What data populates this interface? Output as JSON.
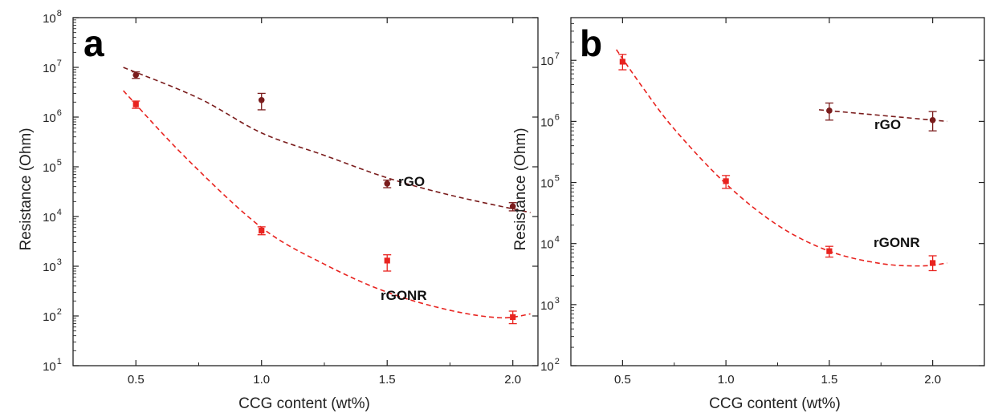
{
  "chart_data": [
    {
      "type": "scatter",
      "panel_label": "a",
      "xlabel": "CCG content (wt%)",
      "ylabel": "Resistance (Ohm)",
      "xlim": [
        0.25,
        2.1
      ],
      "ylim": [
        10,
        100000000
      ],
      "yscale": "log",
      "xticks": [
        "0.5",
        "1.0",
        "1.5",
        "2.0"
      ],
      "xtick_values": [
        0.5,
        1.0,
        1.5,
        2.0
      ],
      "yticks": [
        1,
        2,
        3,
        4,
        5,
        6,
        7,
        8
      ],
      "grid": false,
      "series": [
        {
          "name": "rGO",
          "color": "#7a1c1c",
          "marker": "circle",
          "x": [
            0.5,
            1.0,
            1.5,
            2.0
          ],
          "y": [
            7000000,
            2200000,
            46000,
            16000
          ],
          "err_low": [
            6000000,
            1400000,
            38000,
            13000
          ],
          "err_high": [
            8100000,
            3000000,
            54000,
            19000
          ],
          "fit": [
            [
              0.45,
              10000000
            ],
            [
              0.75,
              2400000
            ],
            [
              1.0,
              480000
            ],
            [
              1.25,
              170000
            ],
            [
              1.5,
              60000
            ],
            [
              1.75,
              27000
            ],
            [
              2.07,
              12000
            ]
          ]
        },
        {
          "name": "rGONR",
          "color": "#e8231f",
          "marker": "square",
          "x": [
            0.5,
            1.0,
            1.5,
            2.0
          ],
          "y": [
            1800000,
            5200,
            1300,
            95
          ],
          "err_low": [
            1500000,
            4300,
            800,
            70
          ],
          "err_high": [
            2100000,
            6200,
            1700,
            125
          ],
          "fit": [
            [
              0.45,
              3400000
            ],
            [
              0.7,
              150000
            ],
            [
              1.0,
              6000
            ],
            [
              1.25,
              1100
            ],
            [
              1.5,
              300
            ],
            [
              1.75,
              130
            ],
            [
              1.95,
              92
            ],
            [
              2.07,
              110
            ]
          ]
        }
      ]
    },
    {
      "type": "scatter",
      "panel_label": "b",
      "xlabel": "CCG content (wt%)",
      "ylabel": "Resistance (Ohm)",
      "xlim": [
        0.25,
        2.25
      ],
      "ylim": [
        100,
        50000000
      ],
      "yscale": "log",
      "xticks": [
        "0.5",
        "1.0",
        "1.5",
        "2.0"
      ],
      "xtick_values": [
        0.5,
        1.0,
        1.5,
        2.0
      ],
      "yticks": [
        2,
        3,
        4,
        5,
        6,
        7
      ],
      "grid": false,
      "series": [
        {
          "name": "rGO",
          "color": "#7a1c1c",
          "marker": "circle",
          "x": [
            1.5,
            2.0
          ],
          "y": [
            1500000,
            1050000
          ],
          "err_low": [
            1050000,
            700000
          ],
          "err_high": [
            2000000,
            1450000
          ],
          "fit": [
            [
              1.45,
              1550000
            ],
            [
              2.07,
              1000000
            ]
          ]
        },
        {
          "name": "rGONR",
          "color": "#e8231f",
          "marker": "square",
          "x": [
            0.5,
            1.0,
            1.5,
            2.0
          ],
          "y": [
            9500000,
            105000,
            7500,
            4800
          ],
          "err_low": [
            7000000,
            80000,
            6000,
            3600
          ],
          "err_high": [
            12500000,
            130000,
            9000,
            6300
          ],
          "fit": [
            [
              0.47,
              15000000
            ],
            [
              0.6,
              3500000
            ],
            [
              0.75,
              750000
            ],
            [
              1.0,
              95000
            ],
            [
              1.25,
              20000
            ],
            [
              1.5,
              7500
            ],
            [
              1.75,
              4700
            ],
            [
              1.95,
              4300
            ],
            [
              2.07,
              4800
            ]
          ]
        }
      ]
    }
  ]
}
